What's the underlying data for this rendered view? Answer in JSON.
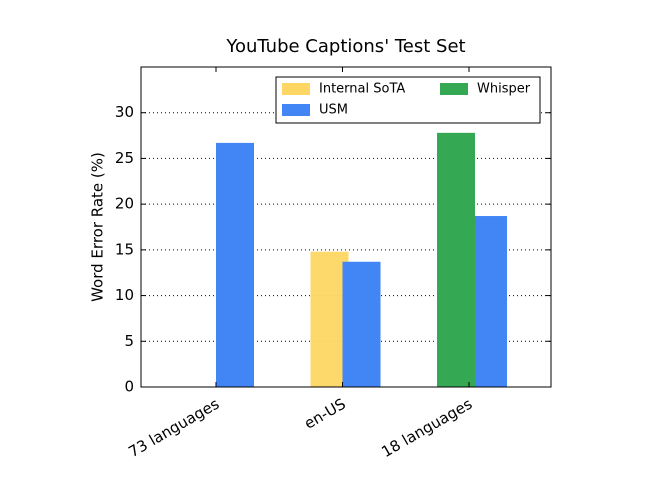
{
  "chart_data": {
    "type": "bar",
    "title": "YouTube Captions' Test Set",
    "ylabel": "Word Error Rate (%)",
    "categories": [
      "73 languages",
      "en-US",
      "18 languages"
    ],
    "series": [
      {
        "name": "Internal SoTA",
        "color": "#fdd663",
        "values": [
          null,
          14.8,
          null
        ]
      },
      {
        "name": "USM",
        "color": "#4285f4",
        "values": [
          26.7,
          13.7,
          18.7
        ]
      },
      {
        "name": "Whisper",
        "color": "#34a853",
        "values": [
          null,
          null,
          27.8
        ]
      }
    ],
    "ylim": [
      0,
      35
    ],
    "yticks": [
      0,
      5,
      10,
      15,
      20,
      25,
      30
    ],
    "grid": true,
    "legend": "upper right"
  }
}
